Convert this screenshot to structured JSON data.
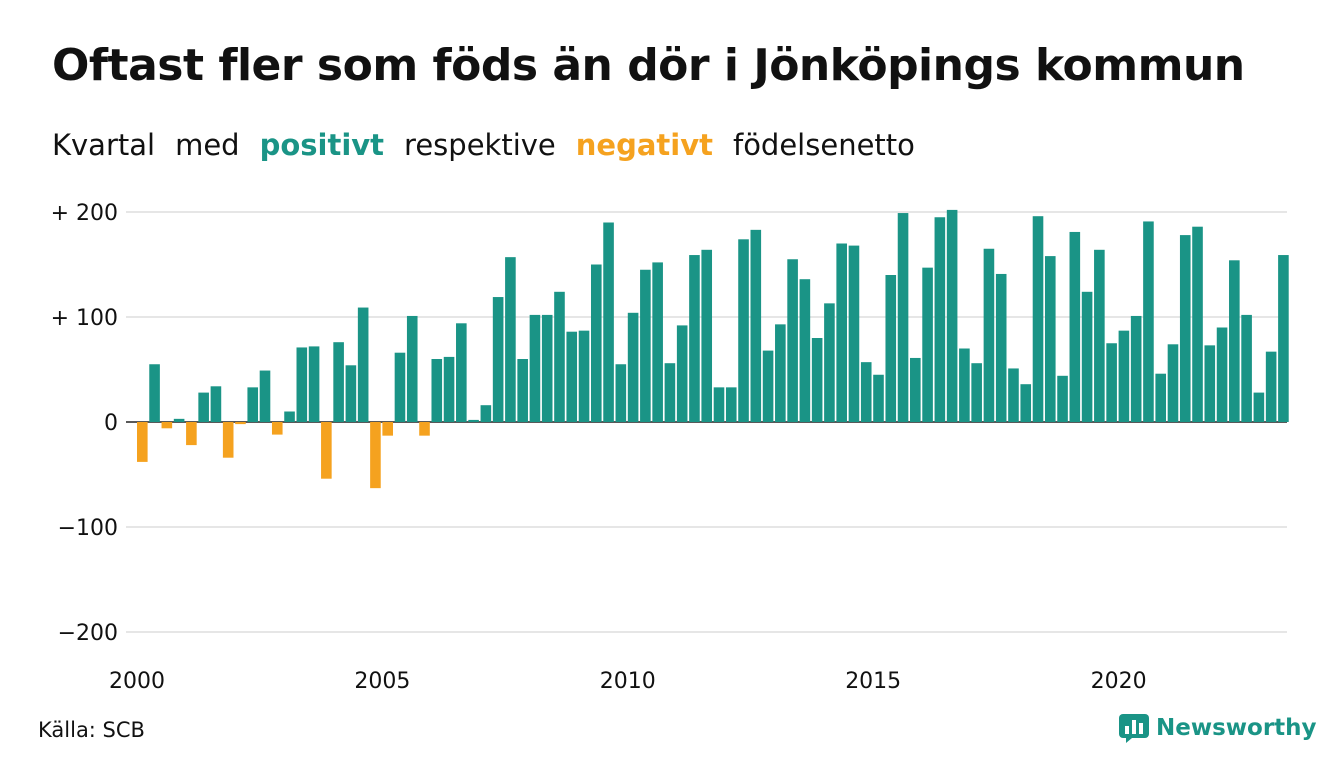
{
  "title": "Oftast fler som föds än dör i Jönköpings kommun",
  "subtitle": {
    "p1": "Kvartal",
    "p2": "med",
    "positive": "positivt",
    "p3": "respektive",
    "negative": "negativt",
    "p4": "födelsenetto"
  },
  "source": "Källa: SCB",
  "brand": "Newsworthy",
  "colors": {
    "positive": "#1a9486",
    "negative": "#f5a21f",
    "grid": "#dddddd",
    "axis": "#222222"
  },
  "chart_data": {
    "type": "bar",
    "x_start": "2000 Q1",
    "x_tick_labels": [
      "2000",
      "2005",
      "2010",
      "2015",
      "2020"
    ],
    "y_tick_labels": [
      "+ 200",
      "+ 100",
      "0",
      "−100",
      "−200"
    ],
    "y_ticks": [
      200,
      100,
      0,
      -100,
      -200
    ],
    "ylim": [
      -200,
      200
    ],
    "grid": true,
    "values": [
      -38,
      55,
      -6,
      3,
      -22,
      28,
      34,
      -34,
      -2,
      33,
      49,
      -12,
      10,
      71,
      72,
      -54,
      76,
      54,
      109,
      -63,
      -13,
      66,
      101,
      -13,
      60,
      62,
      94,
      2,
      16,
      119,
      157,
      60,
      102,
      102,
      124,
      86,
      87,
      150,
      190,
      55,
      104,
      145,
      152,
      56,
      92,
      159,
      164,
      33,
      33,
      174,
      183,
      68,
      93,
      155,
      136,
      80,
      113,
      170,
      168,
      57,
      45,
      140,
      199,
      61,
      147,
      195,
      202,
      70,
      56,
      165,
      141,
      51,
      36,
      196,
      158,
      44,
      181,
      124,
      164,
      75,
      87,
      101,
      191,
      46,
      74,
      178,
      186,
      73,
      90,
      154,
      102,
      28,
      67,
      159
    ]
  }
}
